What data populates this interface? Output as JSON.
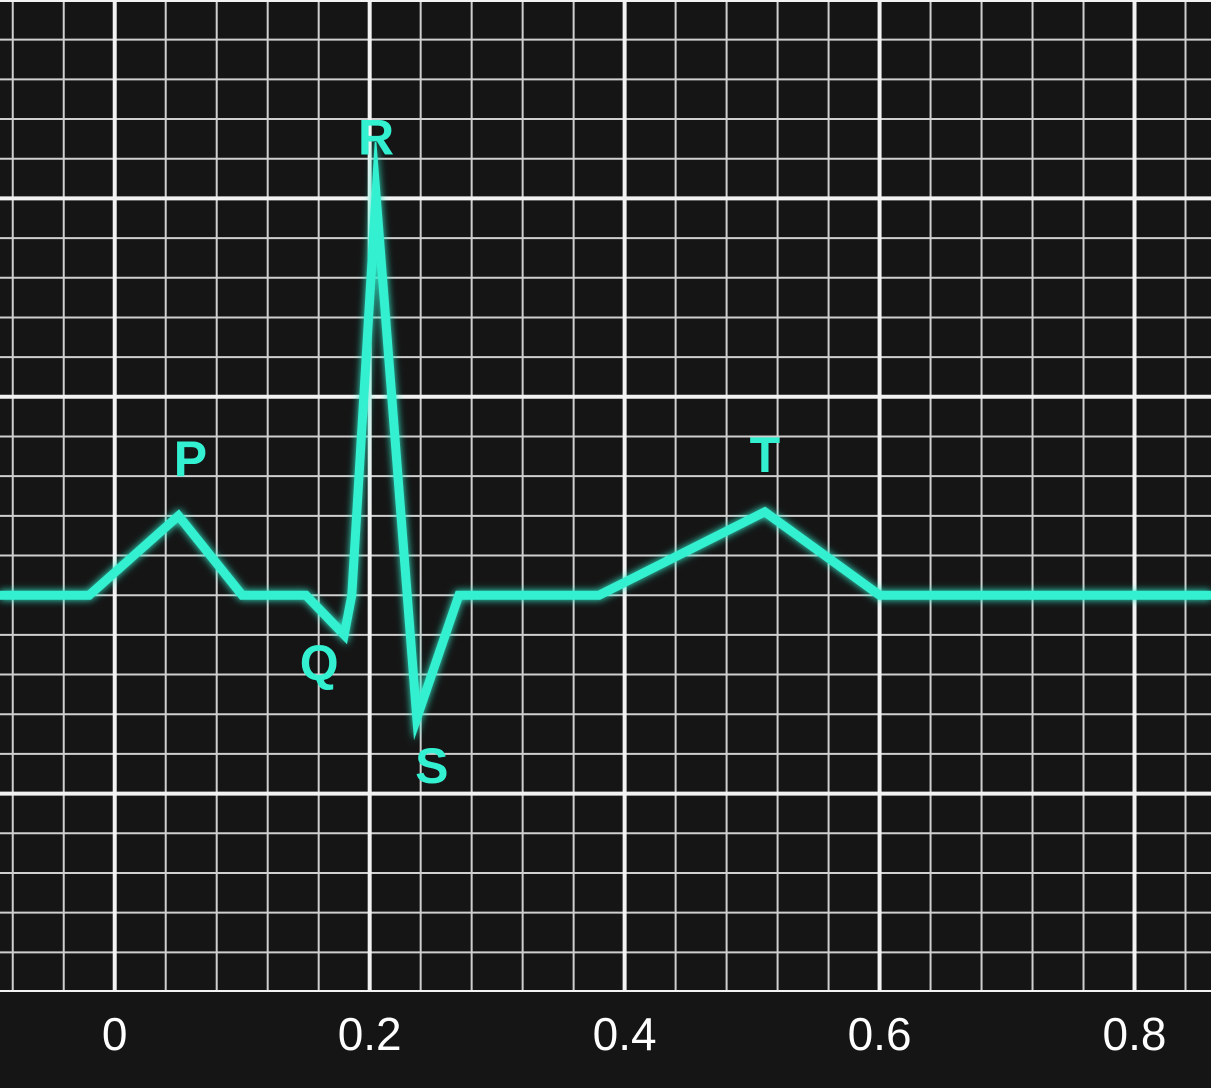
{
  "chart_data": {
    "type": "line",
    "title": "",
    "xlabel": "",
    "ylabel": "",
    "xlim": [
      -0.09,
      0.86
    ],
    "ylim": [
      -1.0,
      1.5
    ],
    "grid": true,
    "x_ticks": [
      0,
      0.2,
      0.4,
      0.6,
      0.8
    ],
    "x_tick_labels": [
      "0",
      "0.2",
      "0.4",
      "0.6",
      "0.8"
    ],
    "series": [
      {
        "x": [
          -0.09,
          -0.02,
          0.05,
          0.1,
          0.15,
          0.18,
          0.186,
          0.205,
          0.237,
          0.27,
          0.38,
          0.51,
          0.6,
          0.86
        ],
        "y": [
          0.0,
          0.0,
          0.2,
          0.0,
          0.0,
          -0.1,
          0.0,
          1.01,
          -0.31,
          0.0,
          0.0,
          0.21,
          0.0,
          0.0
        ]
      }
    ],
    "annotations": [
      {
        "text": "P",
        "x": 0.05,
        "y": 0.2
      },
      {
        "text": "Q",
        "x": 0.18,
        "y": -0.1
      },
      {
        "text": "R",
        "x": 0.205,
        "y": 1.01
      },
      {
        "text": "S",
        "x": 0.237,
        "y": -0.31
      },
      {
        "text": "T",
        "x": 0.51,
        "y": 0.21
      }
    ],
    "colors": {
      "trace": "#33f0d0",
      "labels": "#33f0d0",
      "grid": "#cfcfcf",
      "background": "#151515",
      "tick_text": "#ffffff"
    }
  }
}
